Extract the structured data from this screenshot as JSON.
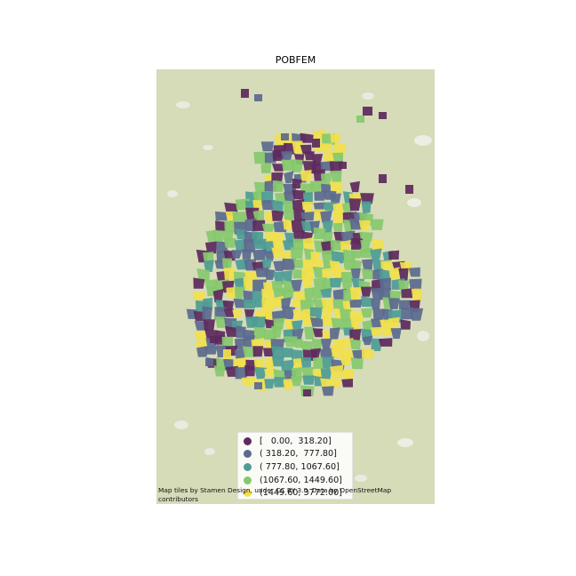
{
  "title": "POBFEM",
  "attribution_text": "Map tiles by Stamen Design, under CC BY 3.0. Data by OpenStreetMap contributors",
  "legend": {
    "entries": [
      {
        "label": "[   0.00,  318.20]",
        "color": "#5e2a5e"
      },
      {
        "label": "( 318.20,  777.80]",
        "color": "#5b6a8f"
      },
      {
        "label": "( 777.80, 1067.60]",
        "color": "#4f9c96"
      },
      {
        "label": "(1067.60, 1449.60]",
        "color": "#86c86e"
      },
      {
        "label": "(1449.60, 3772.00]",
        "color": "#f1e04c"
      }
    ]
  },
  "basemap": {
    "background_color": "#d6dbb8"
  },
  "map": {
    "type": "choropleth",
    "variable": "POBFEM",
    "classes": 5,
    "scheme": "viridis"
  }
}
